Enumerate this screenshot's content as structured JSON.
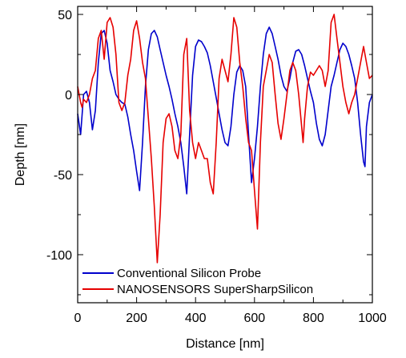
{
  "chart_data": {
    "type": "line",
    "title": "",
    "xlabel": "Distance [nm]",
    "ylabel": "Depth [nm]",
    "xlim": [
      0,
      1000
    ],
    "ylim": [
      -130,
      55
    ],
    "x_ticks": [
      0,
      200,
      400,
      600,
      800,
      1000
    ],
    "y_ticks": [
      -100,
      -50,
      0,
      50
    ],
    "grid": false,
    "legend_position": "bottom-left",
    "series": [
      {
        "name": "Conventional Silicon Probe",
        "color": "#0000cc",
        "points": [
          [
            0,
            -12
          ],
          [
            10,
            -25
          ],
          [
            20,
            0
          ],
          [
            30,
            2
          ],
          [
            40,
            -5
          ],
          [
            50,
            -22
          ],
          [
            60,
            -10
          ],
          [
            70,
            20
          ],
          [
            80,
            38
          ],
          [
            90,
            40
          ],
          [
            100,
            32
          ],
          [
            110,
            15
          ],
          [
            120,
            8
          ],
          [
            130,
            0
          ],
          [
            140,
            -3
          ],
          [
            150,
            -5
          ],
          [
            160,
            -6
          ],
          [
            170,
            -14
          ],
          [
            180,
            -25
          ],
          [
            190,
            -35
          ],
          [
            200,
            -48
          ],
          [
            210,
            -60
          ],
          [
            220,
            -30
          ],
          [
            230,
            5
          ],
          [
            240,
            28
          ],
          [
            250,
            38
          ],
          [
            260,
            40
          ],
          [
            270,
            36
          ],
          [
            280,
            28
          ],
          [
            290,
            20
          ],
          [
            300,
            12
          ],
          [
            310,
            5
          ],
          [
            320,
            -3
          ],
          [
            330,
            -12
          ],
          [
            340,
            -20
          ],
          [
            350,
            -30
          ],
          [
            360,
            -45
          ],
          [
            370,
            -62
          ],
          [
            380,
            -25
          ],
          [
            390,
            12
          ],
          [
            400,
            30
          ],
          [
            410,
            34
          ],
          [
            420,
            33
          ],
          [
            430,
            30
          ],
          [
            440,
            26
          ],
          [
            450,
            18
          ],
          [
            460,
            8
          ],
          [
            470,
            -2
          ],
          [
            480,
            -12
          ],
          [
            490,
            -22
          ],
          [
            500,
            -30
          ],
          [
            510,
            -32
          ],
          [
            520,
            -20
          ],
          [
            530,
            0
          ],
          [
            540,
            14
          ],
          [
            550,
            18
          ],
          [
            560,
            15
          ],
          [
            570,
            5
          ],
          [
            580,
            -25
          ],
          [
            590,
            -55
          ],
          [
            600,
            -40
          ],
          [
            610,
            -20
          ],
          [
            620,
            5
          ],
          [
            630,
            25
          ],
          [
            640,
            38
          ],
          [
            650,
            42
          ],
          [
            660,
            38
          ],
          [
            670,
            30
          ],
          [
            680,
            22
          ],
          [
            690,
            12
          ],
          [
            700,
            5
          ],
          [
            710,
            2
          ],
          [
            720,
            10
          ],
          [
            730,
            20
          ],
          [
            740,
            27
          ],
          [
            750,
            28
          ],
          [
            760,
            25
          ],
          [
            770,
            18
          ],
          [
            780,
            10
          ],
          [
            790,
            2
          ],
          [
            800,
            -5
          ],
          [
            810,
            -18
          ],
          [
            820,
            -28
          ],
          [
            830,
            -32
          ],
          [
            840,
            -25
          ],
          [
            850,
            -10
          ],
          [
            860,
            5
          ],
          [
            870,
            12
          ],
          [
            880,
            20
          ],
          [
            890,
            28
          ],
          [
            900,
            32
          ],
          [
            910,
            30
          ],
          [
            920,
            25
          ],
          [
            930,
            18
          ],
          [
            940,
            10
          ],
          [
            950,
            -5
          ],
          [
            960,
            -25
          ],
          [
            970,
            -42
          ],
          [
            975,
            -45
          ],
          [
            980,
            -20
          ],
          [
            990,
            -5
          ],
          [
            1000,
            0
          ]
        ]
      },
      {
        "name": "NANOSENSORS SuperSharpSilicon",
        "color": "#e60000",
        "points": [
          [
            0,
            5
          ],
          [
            10,
            -5
          ],
          [
            15,
            -8
          ],
          [
            20,
            -3
          ],
          [
            30,
            -5
          ],
          [
            40,
            0
          ],
          [
            50,
            10
          ],
          [
            60,
            15
          ],
          [
            70,
            35
          ],
          [
            80,
            40
          ],
          [
            90,
            22
          ],
          [
            100,
            45
          ],
          [
            110,
            48
          ],
          [
            120,
            42
          ],
          [
            130,
            25
          ],
          [
            140,
            -5
          ],
          [
            150,
            -10
          ],
          [
            160,
            -5
          ],
          [
            170,
            12
          ],
          [
            180,
            22
          ],
          [
            190,
            40
          ],
          [
            200,
            46
          ],
          [
            210,
            35
          ],
          [
            220,
            20
          ],
          [
            230,
            10
          ],
          [
            240,
            -15
          ],
          [
            250,
            -40
          ],
          [
            260,
            -70
          ],
          [
            270,
            -105
          ],
          [
            280,
            -75
          ],
          [
            290,
            -30
          ],
          [
            300,
            -15
          ],
          [
            310,
            -12
          ],
          [
            320,
            -20
          ],
          [
            330,
            -35
          ],
          [
            340,
            -40
          ],
          [
            350,
            -25
          ],
          [
            360,
            25
          ],
          [
            370,
            35
          ],
          [
            380,
            -10
          ],
          [
            390,
            -30
          ],
          [
            400,
            -40
          ],
          [
            410,
            -30
          ],
          [
            420,
            -35
          ],
          [
            430,
            -40
          ],
          [
            440,
            -40
          ],
          [
            450,
            -55
          ],
          [
            460,
            -62
          ],
          [
            470,
            -30
          ],
          [
            480,
            10
          ],
          [
            490,
            22
          ],
          [
            500,
            15
          ],
          [
            510,
            8
          ],
          [
            520,
            25
          ],
          [
            530,
            48
          ],
          [
            540,
            42
          ],
          [
            550,
            20
          ],
          [
            560,
            5
          ],
          [
            570,
            -15
          ],
          [
            580,
            -30
          ],
          [
            590,
            -35
          ],
          [
            600,
            -60
          ],
          [
            610,
            -84
          ],
          [
            620,
            -30
          ],
          [
            630,
            5
          ],
          [
            640,
            15
          ],
          [
            650,
            25
          ],
          [
            660,
            20
          ],
          [
            670,
            0
          ],
          [
            680,
            -18
          ],
          [
            690,
            -28
          ],
          [
            700,
            -15
          ],
          [
            710,
            0
          ],
          [
            720,
            15
          ],
          [
            730,
            20
          ],
          [
            740,
            15
          ],
          [
            750,
            0
          ],
          [
            760,
            -20
          ],
          [
            765,
            -30
          ],
          [
            770,
            -15
          ],
          [
            780,
            5
          ],
          [
            790,
            14
          ],
          [
            800,
            12
          ],
          [
            810,
            15
          ],
          [
            820,
            18
          ],
          [
            830,
            15
          ],
          [
            840,
            5
          ],
          [
            850,
            15
          ],
          [
            860,
            45
          ],
          [
            870,
            50
          ],
          [
            880,
            35
          ],
          [
            890,
            20
          ],
          [
            900,
            5
          ],
          [
            910,
            -5
          ],
          [
            920,
            -12
          ],
          [
            930,
            -5
          ],
          [
            940,
            0
          ],
          [
            950,
            10
          ],
          [
            960,
            20
          ],
          [
            970,
            30
          ],
          [
            980,
            20
          ],
          [
            990,
            10
          ],
          [
            1000,
            12
          ]
        ]
      }
    ]
  }
}
